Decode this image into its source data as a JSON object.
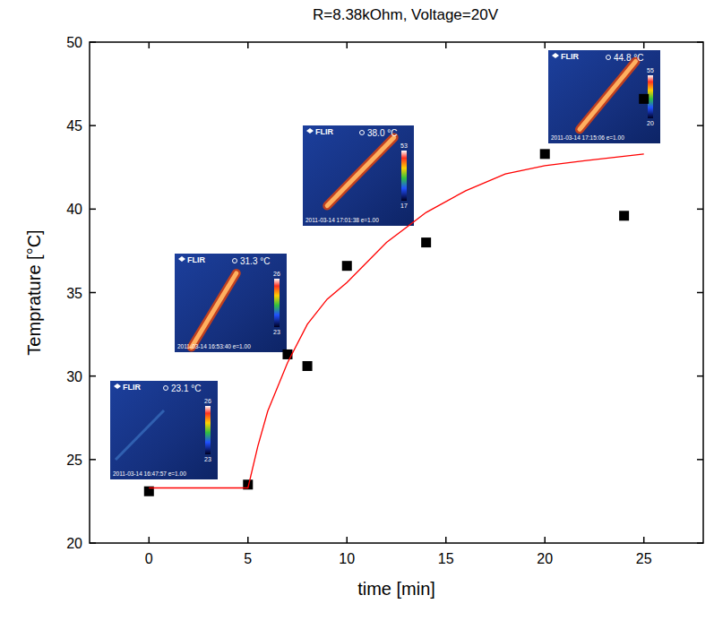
{
  "chart_data": {
    "type": "scatter",
    "title": "R=8.38kOhm, Voltage=20V",
    "x_label": "time [min]",
    "y_label": "Temprature [°C]",
    "xlim": [
      -3,
      28
    ],
    "ylim": [
      20,
      50
    ],
    "xticks": [
      0,
      5,
      10,
      15,
      20,
      25
    ],
    "yticks": [
      20,
      25,
      30,
      35,
      40,
      45,
      50
    ],
    "grid": false,
    "series": [
      {
        "type": "scatter",
        "color": "#000000",
        "marker": "square",
        "x": [
          0,
          5,
          7,
          8,
          10,
          14,
          20,
          24,
          25
        ],
        "values": [
          23.1,
          23.5,
          31.3,
          30.6,
          36.6,
          38.0,
          43.3,
          39.6,
          46.6
        ]
      },
      {
        "type": "line",
        "color": "#ff0000",
        "line_style": "solid",
        "x": [
          0,
          5,
          5.5,
          6,
          7,
          8,
          9,
          10,
          12,
          14,
          16,
          18,
          20,
          22,
          25
        ],
        "values": [
          23.3,
          23.3,
          25.8,
          27.9,
          30.8,
          33.1,
          34.6,
          35.6,
          38.0,
          39.8,
          41.1,
          42.1,
          42.6,
          42.9,
          43.3
        ]
      }
    ],
    "annotations": [
      {
        "brand": "FLIR",
        "reading": "23.1 °C",
        "scale_max": "26",
        "scale_min": "23",
        "timestamp": "2011-03-14 16:47:57 e=1.00"
      },
      {
        "brand": "FLIR",
        "reading": "31.3 °C",
        "scale_max": "26",
        "scale_min": "23",
        "timestamp": "2011-03-14 16:53:40 e=1.00"
      },
      {
        "brand": "FLIR",
        "reading": "38.0 °C",
        "scale_max": "53",
        "scale_min": "17",
        "timestamp": "2011-03-14 17:01:38 e=1.00"
      },
      {
        "brand": "FLIR",
        "reading": "44.8 °C",
        "scale_max": "55",
        "scale_min": "20",
        "timestamp": "2011-03-14 17:15:06 e=1.00"
      }
    ]
  }
}
